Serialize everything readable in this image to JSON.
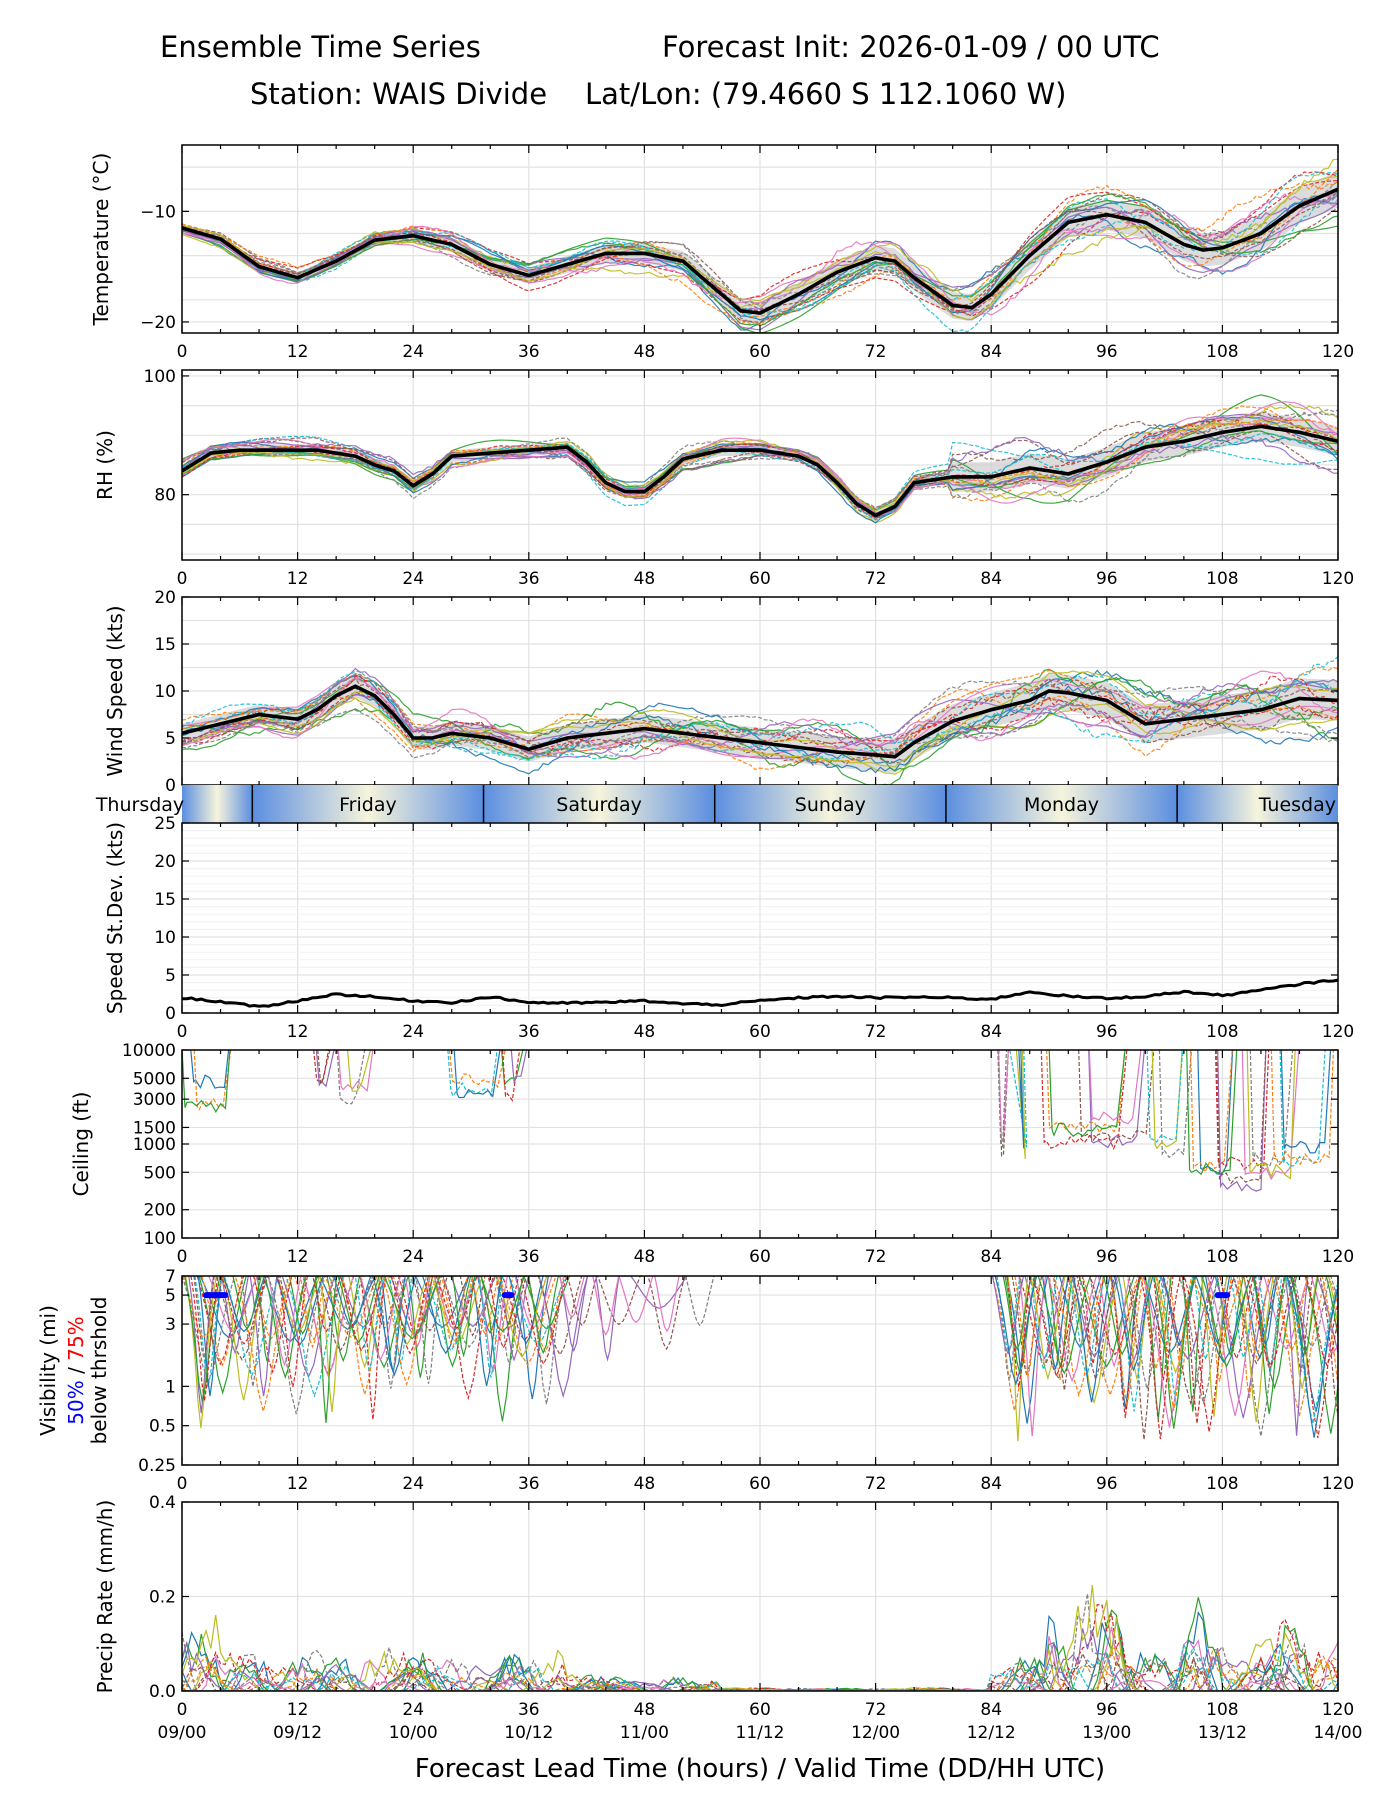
{
  "header": {
    "left": "Ensemble Time Series",
    "right": "Forecast Init: 2026-01-09 / 00 UTC",
    "station": "Station: WAIS Divide",
    "latlon": "Lat/Lon: (79.4660 S 112.1060 W)"
  },
  "chart_data": [
    {
      "type": "line",
      "id": "temp",
      "ylabel": "Temperature (°C)",
      "ylim": [
        -21,
        -4
      ],
      "yticks": [
        -10,
        -20
      ],
      "xlim": [
        0,
        120
      ],
      "xticks": [
        0,
        12,
        24,
        36,
        48,
        60,
        72,
        84,
        96,
        108,
        120
      ],
      "series": [
        {
          "name": "ensemble mean",
          "x": [
            0,
            4,
            8,
            12,
            16,
            20,
            24,
            28,
            32,
            36,
            40,
            44,
            48,
            52,
            56,
            58,
            60,
            64,
            68,
            72,
            74,
            76,
            80,
            82,
            84,
            88,
            92,
            96,
            100,
            104,
            106,
            108,
            112,
            116,
            120
          ],
          "values": [
            -11.5,
            -12.5,
            -15,
            -16,
            -14.5,
            -12.6,
            -12.2,
            -13,
            -14.8,
            -15.8,
            -14.8,
            -13.8,
            -13.8,
            -14.5,
            -17.5,
            -19,
            -19.2,
            -17.5,
            -15.5,
            -14.2,
            -14.5,
            -16,
            -18.5,
            -18.7,
            -17.5,
            -14,
            -11,
            -10.3,
            -11,
            -13,
            -13.5,
            -13.3,
            -12,
            -9.5,
            -8
          ]
        }
      ]
    },
    {
      "type": "line",
      "id": "rh",
      "ylabel": "RH (%)",
      "ylim": [
        69,
        101
      ],
      "yticks": [
        100,
        80
      ],
      "xlim": [
        0,
        120
      ],
      "xticks": [
        0,
        12,
        24,
        36,
        48,
        60,
        72,
        84,
        96,
        108,
        120
      ],
      "series": [
        {
          "name": "ensemble mean",
          "x": [
            0,
            3,
            6,
            10,
            14,
            18,
            20,
            22,
            24,
            26,
            28,
            32,
            36,
            40,
            42,
            44,
            46,
            48,
            50,
            52,
            56,
            60,
            64,
            66,
            68,
            70,
            72,
            74,
            76,
            80,
            84,
            88,
            90,
            92,
            96,
            100,
            104,
            108,
            112,
            114,
            116,
            120
          ],
          "values": [
            84,
            87,
            87.5,
            87.5,
            87.5,
            86.5,
            85,
            84,
            81.5,
            83.5,
            86.5,
            87,
            87.5,
            88,
            85.5,
            82,
            80.5,
            80.5,
            83,
            86,
            87.5,
            87.5,
            86.5,
            85,
            82,
            78.5,
            76.5,
            78,
            82,
            83,
            83,
            84.5,
            84,
            83.5,
            85.5,
            88,
            89,
            90.5,
            91.5,
            91,
            90.5,
            89
          ]
        }
      ]
    },
    {
      "type": "line",
      "id": "wspd",
      "ylabel": "Wind Speed (kts)",
      "ylim": [
        0,
        20
      ],
      "yticks": [
        0,
        5,
        10,
        15,
        20
      ],
      "xlim": [
        0,
        120
      ],
      "series": [
        {
          "name": "ensemble mean",
          "x": [
            0,
            4,
            8,
            12,
            14,
            16,
            18,
            20,
            22,
            24,
            26,
            28,
            32,
            36,
            40,
            44,
            48,
            52,
            56,
            60,
            64,
            68,
            72,
            74,
            76,
            80,
            84,
            88,
            90,
            92,
            96,
            100,
            104,
            108,
            112,
            116,
            120
          ],
          "values": [
            5.5,
            6.5,
            7.5,
            7,
            8,
            9.5,
            10.5,
            9.5,
            7.5,
            5,
            5,
            5.5,
            5,
            3.8,
            5,
            5.5,
            6,
            5.5,
            5,
            4.5,
            4,
            3.5,
            3.2,
            3,
            4.5,
            6.8,
            8,
            9,
            10,
            9.8,
            9,
            6.5,
            7,
            7.5,
            8,
            9.2,
            9
          ]
        }
      ]
    },
    {
      "type": "line",
      "id": "sdev",
      "ylabel": "Speed St.Dev. (kts)",
      "ylim": [
        0,
        25
      ],
      "yticks": [
        0,
        5,
        10,
        15,
        20,
        25
      ],
      "xlim": [
        0,
        120
      ],
      "xticks": [
        0,
        12,
        24,
        36,
        48,
        60,
        72,
        84,
        96,
        108,
        120
      ],
      "series": [
        {
          "name": "std dev",
          "x": [
            0,
            4,
            8,
            12,
            16,
            20,
            24,
            28,
            32,
            36,
            40,
            44,
            48,
            52,
            56,
            60,
            64,
            68,
            72,
            76,
            80,
            84,
            88,
            92,
            96,
            100,
            104,
            108,
            112,
            116,
            120
          ],
          "values": [
            2,
            1.5,
            0.8,
            1.6,
            2.5,
            2.1,
            1.6,
            1.4,
            2.1,
            1.4,
            1.3,
            1.4,
            1.6,
            1.2,
            1.1,
            1.6,
            2,
            2.2,
            2,
            2.1,
            2,
            1.8,
            2.8,
            2.2,
            1.9,
            2.2,
            2.8,
            2.3,
            3,
            3.8,
            4.4
          ]
        }
      ]
    },
    {
      "type": "line",
      "id": "ceil",
      "ylabel": "Ceiling (ft)",
      "yscale": "log",
      "ylim": [
        100,
        10000
      ],
      "yticks": [
        10000,
        5000,
        3000,
        1500,
        1000,
        500,
        200,
        100
      ],
      "xlim": [
        0,
        120
      ],
      "xticks": [
        0,
        12,
        24,
        36,
        48,
        60,
        72,
        84,
        96,
        108,
        120
      ]
    },
    {
      "type": "line",
      "id": "vis",
      "ylabel": "Visibility (mi)",
      "ylabel2": "below thrshold",
      "threshold_50": "50%",
      "threshold_75": "75%",
      "threshold_sep": "/",
      "yscale": "log",
      "ylim": [
        0.25,
        7
      ],
      "yticks": [
        7,
        5,
        3,
        1,
        0.5,
        0.25
      ],
      "xlim": [
        0,
        120
      ],
      "xticks": [
        0,
        12,
        24,
        36,
        48,
        60,
        72,
        84,
        96,
        108,
        120
      ],
      "markers_50pct_x": [
        [
          2.5,
          4.5
        ],
        [
          33.5,
          34.2
        ],
        [
          107.5,
          108.5
        ]
      ],
      "marker_y": 5
    },
    {
      "type": "line",
      "id": "precip",
      "ylabel": "Precip Rate (mm/h)",
      "ylim": [
        0,
        0.4
      ],
      "yticks": [
        0.0,
        0.2,
        0.4
      ],
      "xlim": [
        0,
        120
      ],
      "xticks": [
        0,
        12,
        24,
        36,
        48,
        60,
        72,
        84,
        96,
        108,
        120
      ],
      "xticklabels2": [
        "09/00",
        "09/12",
        "10/00",
        "10/12",
        "11/00",
        "11/12",
        "12/00",
        "12/12",
        "13/00",
        "13/12",
        "14/00"
      ],
      "xlabel": "Forecast Lead Time (hours) / Valid Time (DD/HH UTC)"
    }
  ],
  "days": [
    "Thursday",
    "Friday",
    "Saturday",
    "Sunday",
    "Monday",
    "Tuesday"
  ],
  "colors": {
    "mean": "#000000",
    "band": "#d0d0d0",
    "grid": "#e2e2e2",
    "day_blue": "#5b8ee0",
    "day_cream": "#f6f4dc",
    "threshold_50": "#0000ff",
    "threshold_75": "#ff0000"
  },
  "palette": [
    "#1f77b4",
    "#ff7f0e",
    "#2ca02c",
    "#d62728",
    "#9467bd",
    "#8c564b",
    "#e377c2",
    "#7f7f7f",
    "#bcbd22",
    "#17becf"
  ]
}
